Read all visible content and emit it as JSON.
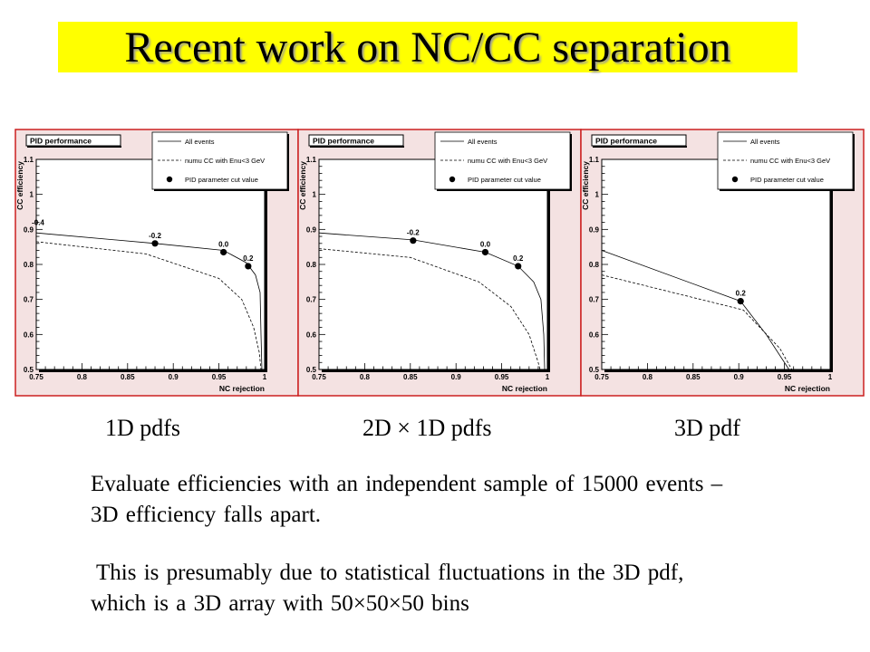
{
  "title": "Recent work on NC/CC separation",
  "charts_common": {
    "box_title": "PID performance",
    "legend": {
      "all_events": "All events",
      "numu_cc": "numu CC with Enu<3 GeV",
      "cut_value": "PID parameter cut value"
    }
  },
  "captions": [
    "1D pdfs",
    "2D × 1D pdfs",
    "3D pdf"
  ],
  "paragraphs": [
    "Evaluate efficiencies with an independent sample of 15000 events – 3D efficiency falls apart.",
    "This is presumably due to statistical fluctuations in the 3D pdf, which is a 3D array with 50×50×50 bins"
  ],
  "colors": {
    "title_bg": "#ffff00",
    "panel_border": "#cc2020",
    "panel_bg": "#f4e2e2",
    "plot_bg": "#ffffff"
  },
  "chart_data": [
    {
      "type": "line",
      "title": "PID performance",
      "xlabel": "NC rejection",
      "ylabel": "CC efficiency",
      "xlim": [
        0.75,
        1.0
      ],
      "ylim": [
        0.5,
        1.1
      ],
      "xticks": [
        "0.75",
        "0.8",
        "0.85",
        "0.9",
        "0.95",
        "1"
      ],
      "yticks": [
        "0.5",
        "0.6",
        "0.7",
        "0.8",
        "0.9",
        "1",
        "1.1"
      ],
      "legend_position": "top-right",
      "series": [
        {
          "name": "All events",
          "style": "solid",
          "points": [
            [
              0.75,
              0.89
            ],
            [
              0.88,
              0.86
            ],
            [
              0.955,
              0.84
            ],
            [
              0.98,
              0.805
            ],
            [
              0.99,
              0.77
            ],
            [
              0.995,
              0.72
            ],
            [
              0.996,
              0.6
            ],
            [
              0.997,
              0.5
            ]
          ]
        },
        {
          "name": "numu CC with Enu<3 GeV",
          "style": "dashed",
          "points": [
            [
              0.75,
              0.865
            ],
            [
              0.87,
              0.83
            ],
            [
              0.95,
              0.76
            ],
            [
              0.975,
              0.7
            ],
            [
              0.988,
              0.62
            ],
            [
              0.994,
              0.55
            ],
            [
              0.996,
              0.5
            ]
          ]
        },
        {
          "name": "PID parameter cut value",
          "style": "markers",
          "points": [
            [
              0.88,
              0.86
            ],
            [
              0.955,
              0.835
            ],
            [
              0.982,
              0.795
            ]
          ],
          "labels": [
            "-0.2",
            "0.0",
            "0.2"
          ]
        }
      ],
      "annotations": [
        {
          "text": "-0.4",
          "x": 0.75,
          "y": 0.9
        }
      ]
    },
    {
      "type": "line",
      "title": "PID performance",
      "xlabel": "NC rejection",
      "ylabel": "CC efficiency",
      "xlim": [
        0.75,
        1.0
      ],
      "ylim": [
        0.5,
        1.1
      ],
      "xticks": [
        "0.75",
        "0.8",
        "0.85",
        "0.9",
        "0.95",
        "1"
      ],
      "yticks": [
        "0.5",
        "0.6",
        "0.7",
        "0.8",
        "0.9",
        "1",
        "1.1"
      ],
      "legend_position": "top-right",
      "series": [
        {
          "name": "All events",
          "style": "solid",
          "points": [
            [
              0.75,
              0.89
            ],
            [
              0.853,
              0.87
            ],
            [
              0.932,
              0.835
            ],
            [
              0.968,
              0.795
            ],
            [
              0.985,
              0.75
            ],
            [
              0.993,
              0.7
            ],
            [
              0.996,
              0.6
            ],
            [
              0.997,
              0.5
            ]
          ]
        },
        {
          "name": "numu CC with Enu<3 GeV",
          "style": "dashed",
          "points": [
            [
              0.75,
              0.845
            ],
            [
              0.85,
              0.82
            ],
            [
              0.925,
              0.75
            ],
            [
              0.96,
              0.68
            ],
            [
              0.98,
              0.6
            ],
            [
              0.99,
              0.52
            ],
            [
              0.992,
              0.5
            ]
          ]
        },
        {
          "name": "PID parameter cut value",
          "style": "markers",
          "points": [
            [
              0.853,
              0.868
            ],
            [
              0.932,
              0.835
            ],
            [
              0.968,
              0.795
            ]
          ],
          "labels": [
            "-0.2",
            "0.0",
            "0.2"
          ]
        }
      ]
    },
    {
      "type": "line",
      "title": "PID performance",
      "xlabel": "NC rejection",
      "ylabel": "CC efficiency",
      "xlim": [
        0.75,
        1.0
      ],
      "ylim": [
        0.5,
        1.1
      ],
      "xticks": [
        "0.75",
        "0.8",
        "0.85",
        "0.9",
        "0.95",
        "1"
      ],
      "yticks": [
        "0.5",
        "0.6",
        "0.7",
        "0.8",
        "0.9",
        "1",
        "1.1"
      ],
      "legend_position": "top-right",
      "series": [
        {
          "name": "All events",
          "style": "solid",
          "points": [
            [
              0.75,
              0.84
            ],
            [
              0.902,
              0.695
            ],
            [
              0.93,
              0.6
            ],
            [
              0.955,
              0.5
            ]
          ]
        },
        {
          "name": "numu CC with Enu<3 GeV",
          "style": "dashed",
          "points": [
            [
              0.75,
              0.77
            ],
            [
              0.905,
              0.67
            ],
            [
              0.945,
              0.56
            ],
            [
              0.958,
              0.5
            ]
          ]
        },
        {
          "name": "PID parameter cut value",
          "style": "markers",
          "points": [
            [
              0.902,
              0.695
            ]
          ],
          "labels": [
            "0.2"
          ]
        }
      ]
    }
  ]
}
